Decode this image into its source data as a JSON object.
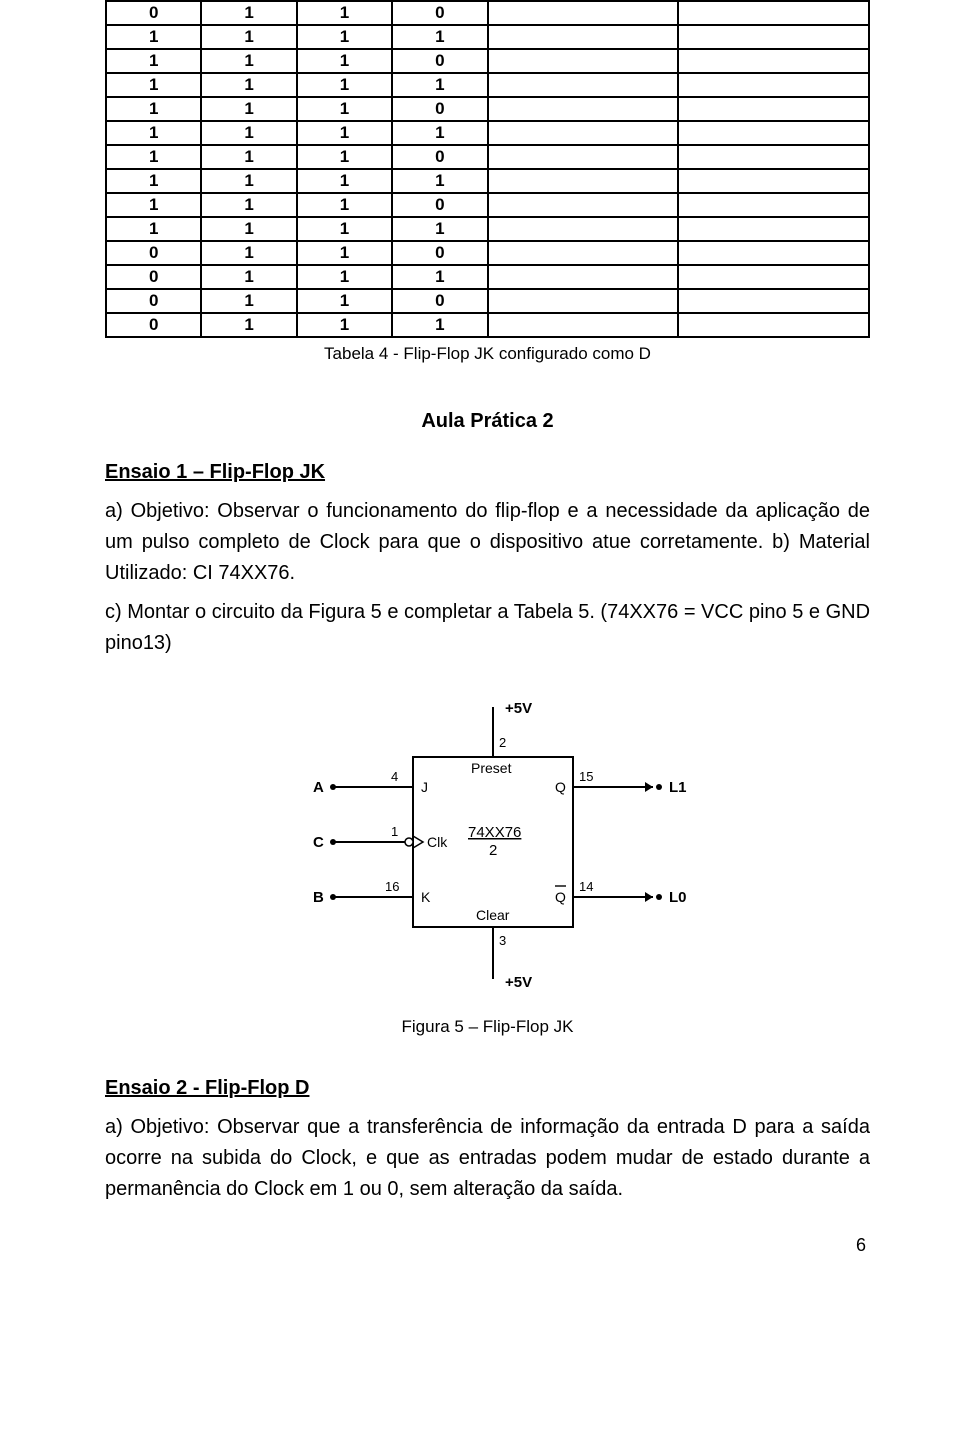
{
  "table": {
    "rows": [
      [
        "0",
        "1",
        "1",
        "0",
        "",
        ""
      ],
      [
        "1",
        "1",
        "1",
        "1",
        "",
        ""
      ],
      [
        "1",
        "1",
        "1",
        "0",
        "",
        ""
      ],
      [
        "1",
        "1",
        "1",
        "1",
        "",
        ""
      ],
      [
        "1",
        "1",
        "1",
        "0",
        "",
        ""
      ],
      [
        "1",
        "1",
        "1",
        "1",
        "",
        ""
      ],
      [
        "1",
        "1",
        "1",
        "0",
        "",
        ""
      ],
      [
        "1",
        "1",
        "1",
        "1",
        "",
        ""
      ],
      [
        "1",
        "1",
        "1",
        "0",
        "",
        ""
      ],
      [
        "1",
        "1",
        "1",
        "1",
        "",
        ""
      ],
      [
        "0",
        "1",
        "1",
        "0",
        "",
        ""
      ],
      [
        "0",
        "1",
        "1",
        "1",
        "",
        ""
      ],
      [
        "0",
        "1",
        "1",
        "0",
        "",
        ""
      ],
      [
        "0",
        "1",
        "1",
        "1",
        "",
        ""
      ]
    ],
    "caption": "Tabela 4 - Flip-Flop JK configurado como D",
    "col_widths": [
      "narrow",
      "narrow",
      "narrow",
      "narrow",
      "wide",
      "wide"
    ]
  },
  "aula_title": "Aula Prática 2",
  "ensaio1": {
    "heading": "Ensaio 1 – Flip-Flop JK",
    "para": "a) Objetivo: Observar o funcionamento do flip-flop e a necessidade da aplicação de um pulso completo de Clock para que o dispositivo atue corretamente. b) Material Utilizado: CI 74XX76.",
    "para2": "c) Montar o circuito da Figura 5 e completar a Tabela 5. (74XX76 = VCC pino 5 e GND pino13)"
  },
  "figure": {
    "caption": "Figura 5 – Flip-Flop JK",
    "labels": {
      "top_supply": "+5V",
      "bottom_supply": "+5V",
      "preset": "Preset",
      "clear": "Clear",
      "clk": "Clk",
      "ic": "74XX76",
      "ic_sub": "2",
      "A": "A",
      "B": "B",
      "C": "C",
      "J": "J",
      "K": "K",
      "Q": "Q",
      "Qn": "Q",
      "L1": "L1",
      "L0": "L0",
      "pin_top": "2",
      "pin_bottom": "3",
      "pin_j": "4",
      "pin_clk": "1",
      "pin_k": "16",
      "pin_q": "15",
      "pin_qn": "14"
    }
  },
  "ensaio2": {
    "heading": "Ensaio 2 - Flip-Flop D",
    "para": "a) Objetivo: Observar que a transferência de informação da entrada D para a saída ocorre na subida do Clock, e que as entradas podem mudar de estado durante a permanência do Clock em 1 ou 0, sem alteração da saída."
  },
  "page_number": "6",
  "colors": {
    "text": "#000000",
    "bg": "#ffffff",
    "border": "#000000"
  }
}
